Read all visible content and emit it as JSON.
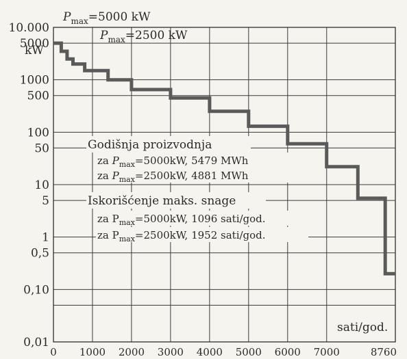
{
  "chart_data": {
    "type": "line",
    "title": "",
    "xlabel": "sati/god.",
    "ylabel": "kW",
    "xlim": [
      0,
      8760
    ],
    "ylim": [
      0.01,
      10000
    ],
    "yscale": "log",
    "grid": true,
    "x_ticks": [
      {
        "value": 0,
        "label": "0"
      },
      {
        "value": 1000,
        "label": "1000"
      },
      {
        "value": 2000,
        "label": "2000"
      },
      {
        "value": 3000,
        "label": "3000"
      },
      {
        "value": 4000,
        "label": "4000"
      },
      {
        "value": 5000,
        "label": "5000"
      },
      {
        "value": 6000,
        "label": "6000"
      },
      {
        "value": 7000,
        "label": "7000"
      },
      {
        "value": 8760,
        "label": "8760"
      }
    ],
    "y_ticks": [
      {
        "value": 10000,
        "label": "10.000"
      },
      {
        "value": 5000,
        "label": "5000"
      },
      {
        "value": 1000,
        "label": "1000"
      },
      {
        "value": 500,
        "label": "500"
      },
      {
        "value": 100,
        "label": "100"
      },
      {
        "value": 50,
        "label": "50"
      },
      {
        "value": 10,
        "label": "10"
      },
      {
        "value": 5,
        "label": "5"
      },
      {
        "value": 1,
        "label": "1"
      },
      {
        "value": 0.5,
        "label": "0,5"
      },
      {
        "value": 0.1,
        "label": "0,10"
      },
      {
        "value": 0.01,
        "label": "0,01"
      }
    ],
    "y_grid_values": [
      10000,
      5000,
      1000,
      500,
      100,
      50,
      10,
      5,
      1,
      0.5,
      0.1,
      0.05
    ],
    "series": [
      {
        "name": "",
        "points": [
          [
            0,
            5000
          ],
          [
            200,
            5000
          ],
          [
            200,
            3500
          ],
          [
            350,
            3500
          ],
          [
            350,
            2500
          ],
          [
            500,
            2500
          ],
          [
            500,
            2000
          ],
          [
            800,
            2000
          ],
          [
            800,
            1500
          ],
          [
            1400,
            1500
          ],
          [
            1400,
            1000
          ],
          [
            2000,
            1000
          ],
          [
            2000,
            650
          ],
          [
            3000,
            650
          ],
          [
            3000,
            450
          ],
          [
            4000,
            450
          ],
          [
            4000,
            250
          ],
          [
            5000,
            250
          ],
          [
            5000,
            130
          ],
          [
            6000,
            130
          ],
          [
            6000,
            60
          ],
          [
            7000,
            60
          ],
          [
            7000,
            22
          ],
          [
            7800,
            22
          ],
          [
            7800,
            5.5
          ],
          [
            8500,
            5.5
          ],
          [
            8500,
            0.2
          ],
          [
            8760,
            0.2
          ]
        ]
      }
    ],
    "annotations": {
      "pmax_1": {
        "symbol": "P",
        "sub": "max",
        "value": "=5000 kW"
      },
      "pmax_2": {
        "symbol": "P",
        "sub": "max",
        "value": "=2500 kW"
      },
      "heading_1": "Godišnja proizvodnja",
      "line_1a": {
        "prefix": "za ",
        "symbol": "P",
        "sub": "max",
        "value": "=5000kW, 5479 MWh"
      },
      "line_1b": {
        "prefix": "za ",
        "symbol": "P",
        "sub": "max",
        "value": "=2500kW, 4881 MWh"
      },
      "heading_2": "Iskorišćenje maks. snage",
      "line_2a": {
        "prefix": "za ",
        "symbol": "P",
        "sub": "max",
        "value": "=5000kW, 1096 sati/god."
      },
      "line_2b": {
        "prefix": "za ",
        "symbol": "P",
        "sub": "max",
        "value": "=2500kW, 1952 sati/god."
      }
    },
    "colors": {
      "line": "#5a5a5a",
      "grid": "#3a3a3a",
      "background": "#f6f4ef"
    }
  }
}
